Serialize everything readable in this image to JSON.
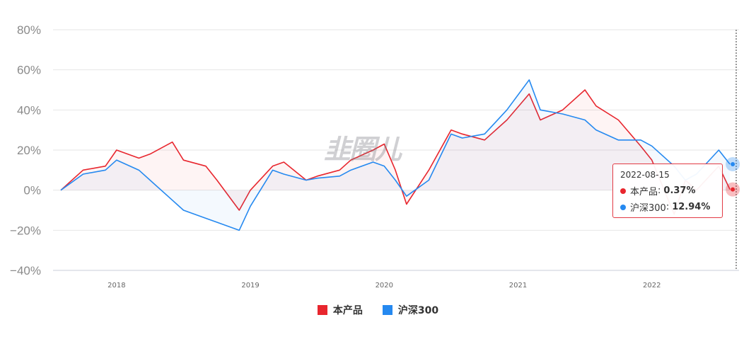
{
  "chart_data": {
    "type": "line",
    "x_ticks": [
      "2018",
      "2019",
      "2020",
      "2021",
      "2022"
    ],
    "y_ticks": [
      "80%",
      "60%",
      "40%",
      "20%",
      "0%",
      "−20%",
      "−40%"
    ],
    "ylim": [
      -40,
      80
    ],
    "grid": true,
    "legend_placement": "bottom-center",
    "series": [
      {
        "name": "本产品",
        "color": "#e8262e",
        "x": [
          "2017-08",
          "2017-10",
          "2017-12",
          "2018-01",
          "2018-03",
          "2018-04",
          "2018-06",
          "2018-07",
          "2018-09",
          "2018-10",
          "2018-12",
          "2019-01",
          "2019-03",
          "2019-04",
          "2019-06",
          "2019-07",
          "2019-09",
          "2019-10",
          "2019-12",
          "2020-01",
          "2020-02",
          "2020-03",
          "2020-05",
          "2020-07",
          "2020-08",
          "2020-10",
          "2020-12",
          "2021-02",
          "2021-03",
          "2021-05",
          "2021-07",
          "2021-08",
          "2021-10",
          "2021-12",
          "2022-01",
          "2022-03",
          "2022-04",
          "2022-05",
          "2022-07",
          "2022-08"
        ],
        "values": [
          0,
          10,
          12,
          20,
          16,
          18,
          24,
          15,
          12,
          5,
          -10,
          0,
          12,
          14,
          5,
          7,
          10,
          15,
          20,
          23,
          10,
          -7,
          10,
          30,
          28,
          25,
          35,
          48,
          35,
          40,
          50,
          42,
          35,
          22,
          15,
          -12,
          5,
          0,
          12,
          0.37
        ]
      },
      {
        "name": "沪深300",
        "color": "#2589f0",
        "x": [
          "2017-08",
          "2017-10",
          "2017-12",
          "2018-01",
          "2018-03",
          "2018-04",
          "2018-06",
          "2018-07",
          "2018-09",
          "2018-10",
          "2018-12",
          "2019-01",
          "2019-03",
          "2019-04",
          "2019-06",
          "2019-07",
          "2019-09",
          "2019-10",
          "2019-12",
          "2020-01",
          "2020-02",
          "2020-03",
          "2020-05",
          "2020-07",
          "2020-08",
          "2020-10",
          "2020-12",
          "2021-02",
          "2021-03",
          "2021-05",
          "2021-07",
          "2021-08",
          "2021-10",
          "2021-12",
          "2022-01",
          "2022-03",
          "2022-04",
          "2022-05",
          "2022-07",
          "2022-08"
        ],
        "values": [
          0,
          8,
          10,
          15,
          10,
          5,
          -5,
          -10,
          -14,
          -16,
          -20,
          -8,
          10,
          8,
          5,
          6,
          7,
          10,
          14,
          12,
          5,
          -3,
          5,
          28,
          26,
          28,
          40,
          55,
          40,
          38,
          35,
          30,
          25,
          25,
          22,
          12,
          5,
          8,
          20,
          12.94
        ]
      }
    ]
  },
  "legend": [
    {
      "label": "本产品",
      "color": "#e8262e"
    },
    {
      "label": "沪深300",
      "color": "#2589f0"
    }
  ],
  "tooltip": {
    "date": "2022-08-15",
    "rows": [
      {
        "label": "本产品",
        "value": "0.37%",
        "color": "#e8262e"
      },
      {
        "label": "沪深300",
        "value": "12.94%",
        "color": "#2589f0"
      }
    ]
  },
  "watermark": "韭圈儿"
}
